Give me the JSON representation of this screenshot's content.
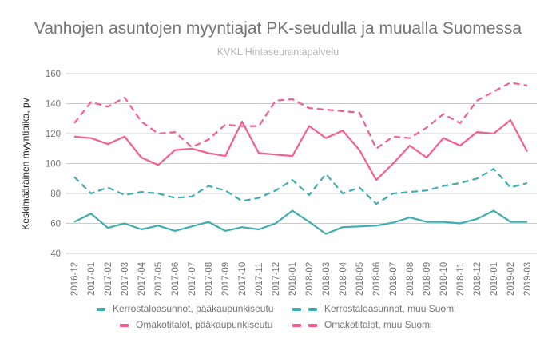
{
  "chart_data": {
    "type": "line",
    "title": "Vanhojen asuntojen myyntiajat PK-seudulla ja muualla Suomessa",
    "subtitle": "KVKL Hintaseurantapalvelu",
    "xlabel": "",
    "ylabel": "Keskimääräinen myyntiaika, pv",
    "ylim": [
      40,
      160
    ],
    "yticks": [
      40,
      60,
      80,
      100,
      120,
      140,
      160
    ],
    "grid": true,
    "legend_position": "bottom",
    "categories": [
      "2016-12",
      "2017-01",
      "2017-02",
      "2017-03",
      "2017-04",
      "2017-05",
      "2017-06",
      "2017-07",
      "2017-08",
      "2017-09",
      "2017-10",
      "2017-11",
      "2017-12",
      "2018-01",
      "2018-02",
      "2018-03",
      "2018-04",
      "2018-05",
      "2018-06",
      "2018-07",
      "2018-08",
      "2018-09",
      "2018-10",
      "2018-11",
      "2018-12",
      "2019-01",
      "2019-02",
      "2019-03"
    ],
    "series": [
      {
        "name": "Kerrostaloasunnot, pääkaupunkiseutu",
        "color": "#40aeb0",
        "dash": "solid",
        "values": [
          61,
          66.5,
          57,
          60,
          56,
          58.5,
          55,
          58,
          61,
          55,
          57.5,
          56,
          60,
          68.5,
          61,
          53,
          57.5,
          58,
          58.5,
          60.5,
          64,
          61,
          61,
          60,
          63,
          68.5,
          61,
          61
        ]
      },
      {
        "name": "Kerrostaloasunnot, muu Suomi",
        "color": "#40aeb0",
        "dash": "dashed",
        "values": [
          91,
          80,
          84,
          79,
          81,
          80,
          77,
          78,
          85,
          82,
          75,
          77,
          82,
          89,
          79,
          93,
          80,
          84,
          73,
          80,
          81,
          82,
          85,
          87,
          90,
          96.5,
          84,
          87
        ]
      },
      {
        "name": "Omakotitalot, pääkaupunkiseutu",
        "color": "#f55f8d",
        "dash": "solid",
        "values": [
          118,
          117,
          113,
          118,
          104,
          99,
          109,
          110,
          107,
          105,
          128,
          107,
          106,
          105,
          125,
          117,
          122,
          109,
          89,
          100,
          112,
          104,
          117,
          112,
          121,
          120,
          129,
          108
        ]
      },
      {
        "name": "Omakotitalot, muu Suomi",
        "color": "#f55f8d",
        "dash": "dashed",
        "values": [
          127,
          141,
          138,
          144,
          128,
          120,
          121,
          111,
          116,
          126,
          125,
          125,
          142,
          143,
          137,
          136,
          135,
          134,
          110,
          118,
          117,
          124,
          133,
          127,
          142,
          148,
          154,
          152
        ]
      }
    ]
  }
}
